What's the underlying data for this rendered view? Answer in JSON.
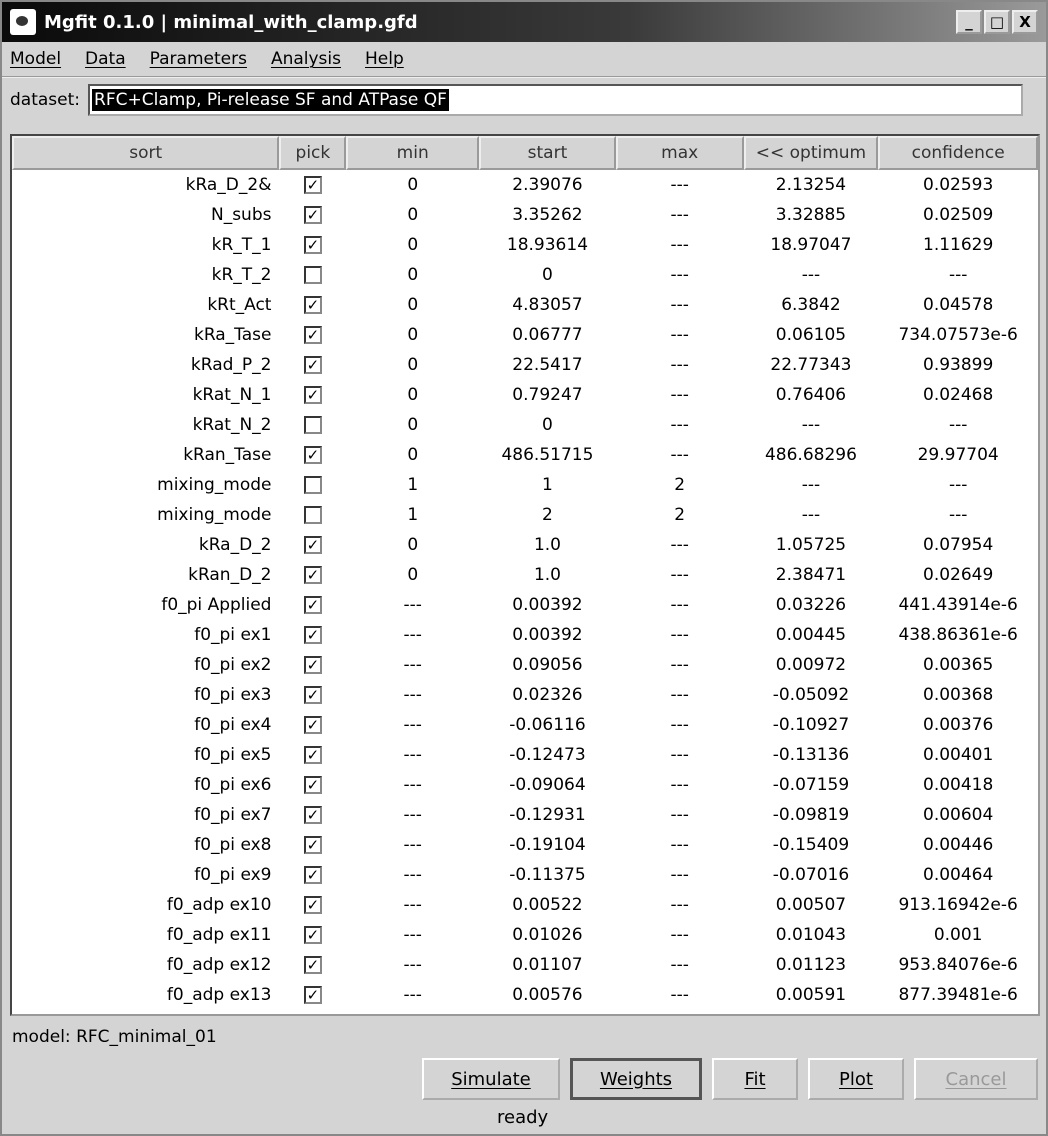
{
  "window": {
    "title": "Mgfit 0.1.0 | minimal_with_clamp.gfd",
    "controls": [
      "_",
      "□",
      "X"
    ]
  },
  "menu": [
    "Model",
    "Data",
    "Parameters",
    "Analysis",
    "Help"
  ],
  "dataset": {
    "label": "dataset:",
    "value": "RFC+Clamp, Pi-release SF and ATPase QF"
  },
  "table": {
    "columns": [
      "sort",
      "pick",
      "min",
      "start",
      "max",
      "<< optimum",
      "confidence"
    ],
    "rows": [
      [
        "kRa_D_2&",
        true,
        "0",
        "2.39076",
        "---",
        "2.13254",
        "0.02593"
      ],
      [
        "N_subs",
        true,
        "0",
        "3.35262",
        "---",
        "3.32885",
        "0.02509"
      ],
      [
        "kR_T_1",
        true,
        "0",
        "18.93614",
        "---",
        "18.97047",
        "1.11629"
      ],
      [
        "kR_T_2",
        false,
        "0",
        "0",
        "---",
        "---",
        "---"
      ],
      [
        "kRt_Act",
        true,
        "0",
        "4.83057",
        "---",
        "6.3842",
        "0.04578"
      ],
      [
        "kRa_Tase",
        true,
        "0",
        "0.06777",
        "---",
        "0.06105",
        "734.07573e-6"
      ],
      [
        "kRad_P_2",
        true,
        "0",
        "22.5417",
        "---",
        "22.77343",
        "0.93899"
      ],
      [
        "kRat_N_1",
        true,
        "0",
        "0.79247",
        "---",
        "0.76406",
        "0.02468"
      ],
      [
        "kRat_N_2",
        false,
        "0",
        "0",
        "---",
        "---",
        "---"
      ],
      [
        "kRan_Tase",
        true,
        "0",
        "486.51715",
        "---",
        "486.68296",
        "29.97704"
      ],
      [
        "mixing_mode",
        false,
        "1",
        "1",
        "2",
        "---",
        "---"
      ],
      [
        "mixing_mode",
        false,
        "1",
        "2",
        "2",
        "---",
        "---"
      ],
      [
        "kRa_D_2",
        true,
        "0",
        "1.0",
        "---",
        "1.05725",
        "0.07954"
      ],
      [
        "kRan_D_2",
        true,
        "0",
        "1.0",
        "---",
        "2.38471",
        "0.02649"
      ],
      [
        "f0_pi Applied",
        true,
        "---",
        "0.00392",
        "---",
        "0.03226",
        "441.43914e-6"
      ],
      [
        "f0_pi ex1",
        true,
        "---",
        "0.00392",
        "---",
        "0.00445",
        "438.86361e-6"
      ],
      [
        "f0_pi ex2",
        true,
        "---",
        "0.09056",
        "---",
        "0.00972",
        "0.00365"
      ],
      [
        "f0_pi ex3",
        true,
        "---",
        "0.02326",
        "---",
        "-0.05092",
        "0.00368"
      ],
      [
        "f0_pi ex4",
        true,
        "---",
        "-0.06116",
        "---",
        "-0.10927",
        "0.00376"
      ],
      [
        "f0_pi ex5",
        true,
        "---",
        "-0.12473",
        "---",
        "-0.13136",
        "0.00401"
      ],
      [
        "f0_pi ex6",
        true,
        "---",
        "-0.09064",
        "---",
        "-0.07159",
        "0.00418"
      ],
      [
        "f0_pi ex7",
        true,
        "---",
        "-0.12931",
        "---",
        "-0.09819",
        "0.00604"
      ],
      [
        "f0_pi ex8",
        true,
        "---",
        "-0.19104",
        "---",
        "-0.15409",
        "0.00446"
      ],
      [
        "f0_pi ex9",
        true,
        "---",
        "-0.11375",
        "---",
        "-0.07016",
        "0.00464"
      ],
      [
        "f0_adp ex10",
        true,
        "---",
        "0.00522",
        "---",
        "0.00507",
        "913.16942e-6"
      ],
      [
        "f0_adp ex11",
        true,
        "---",
        "0.01026",
        "---",
        "0.01043",
        "0.001"
      ],
      [
        "f0_adp ex12",
        true,
        "---",
        "0.01107",
        "---",
        "0.01123",
        "953.84076e-6"
      ],
      [
        "f0_adp ex13",
        true,
        "---",
        "0.00576",
        "---",
        "0.00591",
        "877.39481e-6"
      ]
    ]
  },
  "model_label": "model: RFC_minimal_01",
  "buttons": [
    {
      "label": "Simulate",
      "state": "normal"
    },
    {
      "label": "Weights",
      "state": "default"
    },
    {
      "label": "Fit",
      "state": "normal"
    },
    {
      "label": "Plot",
      "state": "normal"
    },
    {
      "label": "Cancel",
      "state": "disabled"
    }
  ],
  "status": "ready"
}
